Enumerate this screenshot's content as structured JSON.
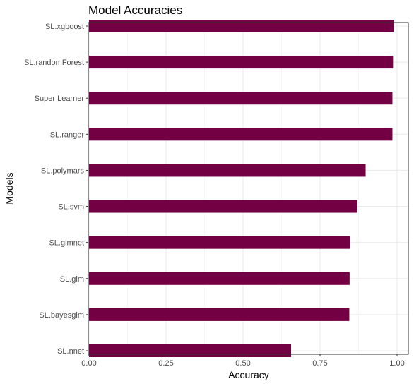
{
  "chart_data": {
    "type": "bar",
    "orientation": "horizontal",
    "title": "Model Accuracies",
    "xlabel": "Accuracy",
    "ylabel": "Models",
    "categories": [
      "SL.nnet",
      "SL.bayesglm",
      "SL.glm",
      "SL.glmnet",
      "SL.svm",
      "SL.polymars",
      "SL.ranger",
      "Super Learner",
      "SL.randomForest",
      "SL.xgboost"
    ],
    "values": [
      0.656,
      0.845,
      0.846,
      0.848,
      0.871,
      0.898,
      0.985,
      0.985,
      0.987,
      0.99
    ],
    "xlim": [
      0,
      1.0
    ],
    "xticks": [
      "0.00",
      "0.25",
      "0.50",
      "0.75",
      "1.00"
    ],
    "bar_color": "#730043",
    "grid": true,
    "legend": "none"
  }
}
